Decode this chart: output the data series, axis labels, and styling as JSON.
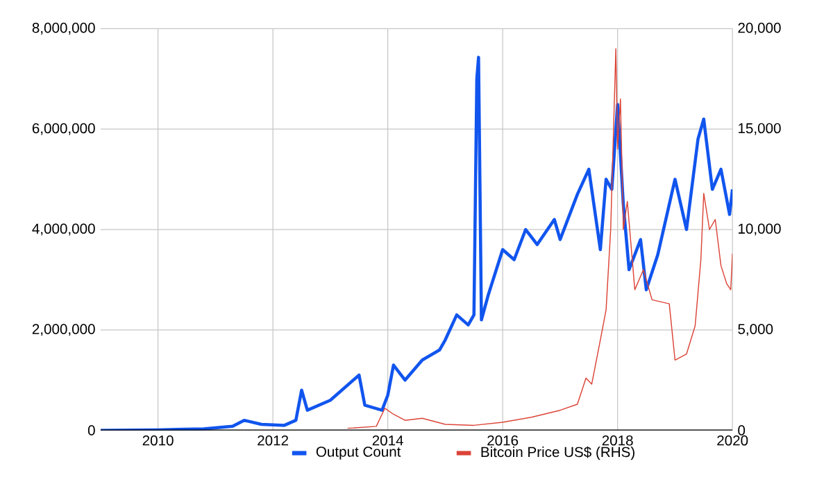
{
  "chart_data": {
    "type": "line",
    "xlim": [
      2009,
      2020
    ],
    "xticks": [
      2010,
      2012,
      2014,
      2016,
      2018,
      2020
    ],
    "ylim": [
      0,
      8000000
    ],
    "yticks": [
      {
        "value": 0,
        "label": "0"
      },
      {
        "value": 2000000,
        "label": "2,000,000"
      },
      {
        "value": 4000000,
        "label": "4,000,000"
      },
      {
        "value": 6000000,
        "label": "6,000,000"
      },
      {
        "value": 8000000,
        "label": "8,000,000"
      }
    ],
    "y2lim": [
      0,
      20000
    ],
    "y2ticks": [
      {
        "value": 0,
        "label": "0"
      },
      {
        "value": 5000,
        "label": "5,000"
      },
      {
        "value": 10000,
        "label": "10,000"
      },
      {
        "value": 15000,
        "label": "15,000"
      },
      {
        "value": 20000,
        "label": "20,000"
      }
    ],
    "grid": true,
    "legend": "bottom",
    "series": [
      {
        "name": "Output Count",
        "color": "#1155ee",
        "x": [
          2009.0,
          2010.0,
          2010.8,
          2011.3,
          2011.5,
          2011.8,
          2012.2,
          2012.4,
          2012.5,
          2012.6,
          2013.0,
          2013.3,
          2013.5,
          2013.6,
          2013.9,
          2014.0,
          2014.1,
          2014.3,
          2014.6,
          2014.9,
          2015.0,
          2015.2,
          2015.4,
          2015.5,
          2015.55,
          2015.58,
          2015.63,
          2015.75,
          2016.0,
          2016.2,
          2016.4,
          2016.6,
          2016.9,
          2017.0,
          2017.3,
          2017.5,
          2017.7,
          2017.8,
          2017.9,
          2018.0,
          2018.1,
          2018.2,
          2018.4,
          2018.5,
          2018.7,
          2019.0,
          2019.2,
          2019.4,
          2019.5,
          2019.65,
          2019.8,
          2019.95,
          2020.0
        ],
        "values": [
          0,
          10000,
          30000,
          80000,
          200000,
          120000,
          100000,
          200000,
          800000,
          400000,
          600000,
          900000,
          1100000,
          500000,
          400000,
          700000,
          1300000,
          1000000,
          1400000,
          1600000,
          1800000,
          2300000,
          2100000,
          2300000,
          7000000,
          7430000,
          2200000,
          2700000,
          3600000,
          3400000,
          4000000,
          3700000,
          4200000,
          3800000,
          4700000,
          5200000,
          3600000,
          5000000,
          4800000,
          6490000,
          4500000,
          3200000,
          3800000,
          2800000,
          3500000,
          5000000,
          4000000,
          5800000,
          6200000,
          4800000,
          5200000,
          4300000,
          4800000
        ]
      },
      {
        "name": "Bitcoin Price US$ (RHS)",
        "color": "#db4437",
        "axis": "y2",
        "x": [
          2013.3,
          2013.8,
          2013.95,
          2014.1,
          2014.3,
          2014.6,
          2015.0,
          2015.5,
          2016.0,
          2016.5,
          2017.0,
          2017.3,
          2017.45,
          2017.55,
          2017.7,
          2017.8,
          2017.88,
          2017.95,
          2017.97,
          2018.0,
          2018.05,
          2018.1,
          2018.17,
          2018.3,
          2018.45,
          2018.6,
          2018.9,
          2019.0,
          2019.2,
          2019.35,
          2019.45,
          2019.5,
          2019.6,
          2019.7,
          2019.8,
          2019.9,
          2019.97,
          2020.0
        ],
        "values": [
          100,
          200,
          1100,
          800,
          500,
          600,
          300,
          250,
          400,
          650,
          1000,
          1300,
          2600,
          2300,
          4500,
          6000,
          10000,
          17000,
          19000,
          14000,
          16500,
          10000,
          11400,
          7000,
          8000,
          6500,
          6300,
          3500,
          3800,
          5200,
          8500,
          11800,
          10000,
          10500,
          8200,
          7300,
          7000,
          8800
        ]
      }
    ]
  }
}
